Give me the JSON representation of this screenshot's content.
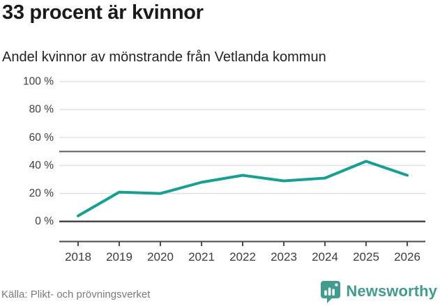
{
  "header": {
    "title": "33 procent är kvinnor",
    "subtitle": "Andel kvinnor av mönstrande från Vetlanda kommun"
  },
  "chart_data": {
    "type": "line",
    "title": "33 procent är kvinnor",
    "subtitle": "Andel kvinnor av mönstrande från Vetlanda kommun",
    "categories": [
      "2018",
      "2019",
      "2020",
      "2021",
      "2022",
      "2023",
      "2024",
      "2025",
      "2026"
    ],
    "series": [
      {
        "name": "Andel kvinnor av mönstrande",
        "values": [
          4,
          21,
          20,
          28,
          33,
          29,
          31,
          43,
          33
        ]
      }
    ],
    "ylim": [
      0,
      100
    ],
    "yticks": [
      0,
      20,
      40,
      60,
      80,
      100
    ],
    "ytick_suffix": " %",
    "reference_line": 50,
    "grid": true,
    "legend": "none",
    "line_color": "#16a091"
  },
  "colors": {
    "accent": "#16a091",
    "grid": "#dedede",
    "baseline": "#3d3d3d",
    "reference": "#5c5c5c",
    "axis": "#4a4a4a",
    "tick_text": "#3d3d3d",
    "muted_text": "#7b7b7b",
    "brand": "#3f9c8e",
    "title_text": "#1a1a1a"
  },
  "footer": {
    "source": "Källa: Plikt- och prövningsverket",
    "brand": "Newsworthy"
  }
}
